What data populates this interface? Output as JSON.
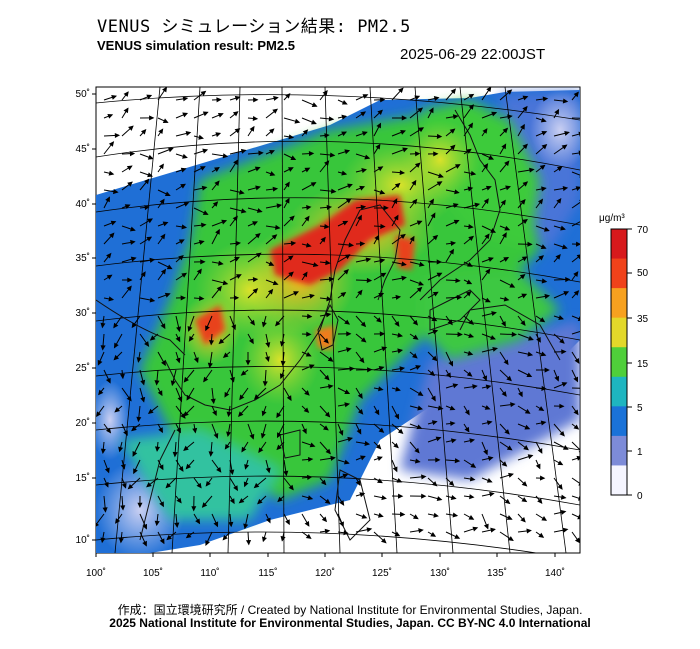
{
  "title_ja": "VENUS シミュレーション結果: PM2.5",
  "title_en": "VENUS simulation result: PM2.5",
  "datetime": "2025-06-29 22:00JST",
  "lat_ticks": [
    "50˚",
    "45˚",
    "40˚",
    "35˚",
    "30˚",
    "25˚",
    "20˚",
    "15˚",
    "10˚"
  ],
  "lon_ticks": [
    "100˚",
    "105˚",
    "110˚",
    "115˚",
    "120˚",
    "125˚",
    "130˚",
    "135˚",
    "140˚"
  ],
  "colorbar": {
    "unit": "μg/m³",
    "labels": [
      "70",
      "50",
      "35",
      "15",
      "5",
      "1",
      "0"
    ],
    "colors": [
      "#d7191c",
      "#f0421a",
      "#f7a11f",
      "#e3d82a",
      "#4fcf3a",
      "#1eb5c0",
      "#1a72d8",
      "#7d8bd8",
      "#f5f5ff"
    ]
  },
  "credit_line1": "作成：国立環境研究所 / Created by National Institute for Environmental Studies, Japan.",
  "credit_line2": "2025 National Institute for Environmental Studies, Japan. CC BY-NC 4.0 International"
}
